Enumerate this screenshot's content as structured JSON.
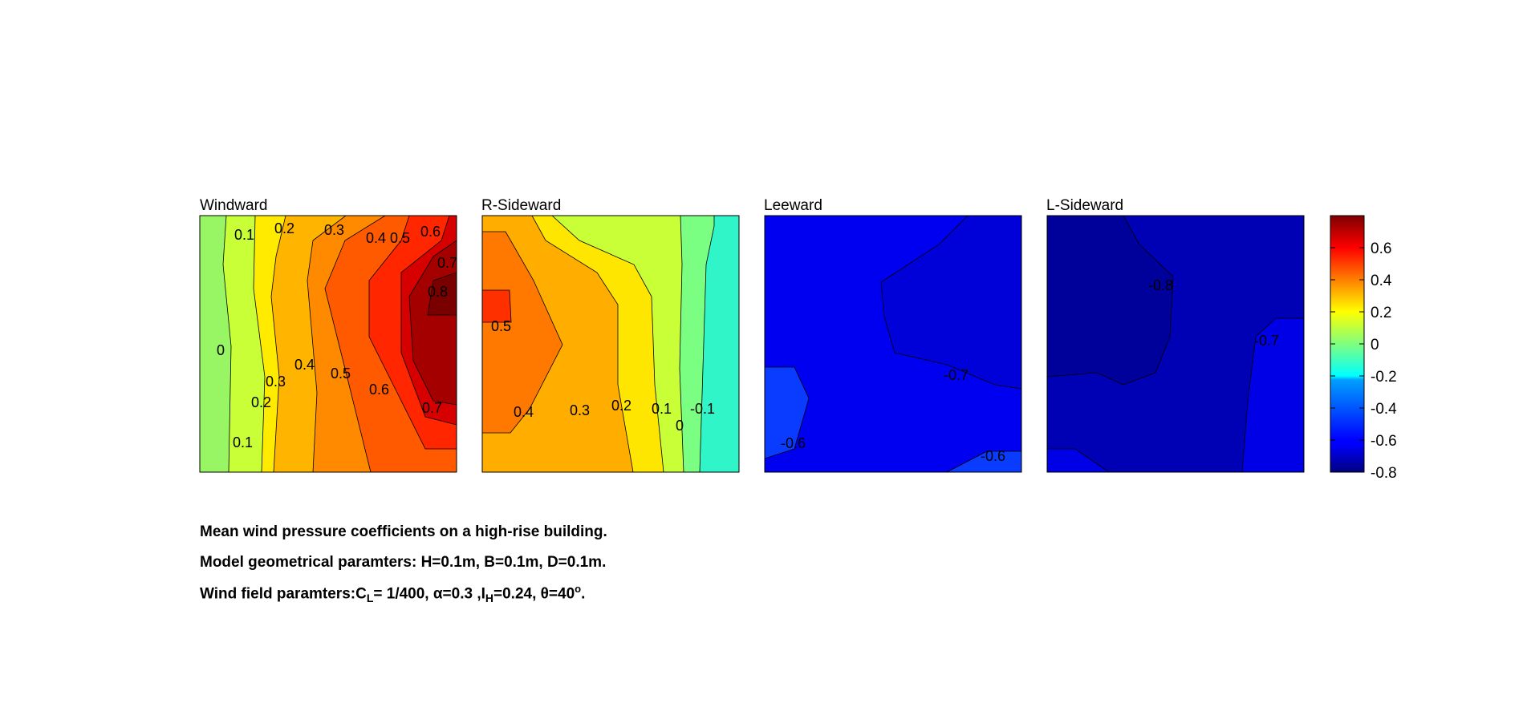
{
  "chart_data": {
    "type": "contour",
    "colormap": "jet",
    "clim": [
      -0.8,
      0.8
    ],
    "panels": [
      {
        "title": "Windward",
        "contour_labels": [
          "0.1",
          "0.2",
          "0.3",
          "0.4",
          "0.5",
          "0.6",
          "0.7",
          "0.8",
          "0",
          "0.2",
          "0.3",
          "0.4",
          "0.5",
          "0.6",
          "0.7",
          "0.1"
        ],
        "bands": [
          {
            "value": -0.1,
            "color": "#98f564"
          },
          {
            "value": 0.05,
            "color": "#c8ff37"
          },
          {
            "value": 0.15,
            "color": "#ffeb00"
          },
          {
            "value": 0.25,
            "color": "#ffb400"
          },
          {
            "value": 0.35,
            "color": "#ff8a00"
          },
          {
            "value": 0.45,
            "color": "#ff5a00"
          },
          {
            "value": 0.55,
            "color": "#ff2600"
          },
          {
            "value": 0.65,
            "color": "#d60000"
          },
          {
            "value": 0.75,
            "color": "#a50000"
          },
          {
            "value": 0.85,
            "color": "#7a0000"
          }
        ]
      },
      {
        "title": "R-Sideward",
        "contour_labels": [
          "0.5",
          "0.4",
          "0.3",
          "0.2",
          "0.1",
          "0",
          "-0.1"
        ],
        "bands": [
          {
            "value": -0.15,
            "color": "#2ff5c8"
          },
          {
            "value": -0.05,
            "color": "#7aff82"
          },
          {
            "value": 0.05,
            "color": "#c8ff37"
          },
          {
            "value": 0.15,
            "color": "#ffe600"
          },
          {
            "value": 0.3,
            "color": "#ffae00"
          },
          {
            "value": 0.4,
            "color": "#ff7800"
          },
          {
            "value": 0.55,
            "color": "#ff3000"
          }
        ]
      },
      {
        "title": "Leeward",
        "contour_labels": [
          "-0.7",
          "-0.6",
          "-0.6"
        ],
        "bands": [
          {
            "value": -0.75,
            "color": "#0000d8"
          },
          {
            "value": -0.65,
            "color": "#0000f0"
          },
          {
            "value": -0.55,
            "color": "#0a3cff"
          }
        ]
      },
      {
        "title": "L-Sideward",
        "contour_labels": [
          "-0.8",
          "-0.7"
        ],
        "bands": [
          {
            "value": -0.85,
            "color": "#00009a"
          },
          {
            "value": -0.75,
            "color": "#0000b4"
          },
          {
            "value": -0.65,
            "color": "#0000e6"
          }
        ]
      }
    ],
    "colorbar": {
      "ticks": [
        "0.6",
        "0.4",
        "0.2",
        "0",
        "-0.2",
        "-0.4",
        "-0.6",
        "-0.8"
      ],
      "tick_values": [
        0.6,
        0.4,
        0.2,
        0,
        -0.2,
        -0.4,
        -0.6,
        -0.8
      ]
    }
  },
  "caption": {
    "line1": "Mean wind pressure coefficients on a high-rise building.",
    "line2": "Model geometrical paramters: H=0.1m, B=0.1m, D=0.1m.",
    "line3_a": "Wind field paramters:C",
    "line3_sub1": "L",
    "line3_b": "= 1/400, α=0.3 ,I",
    "line3_sub2": "H",
    "line3_c": "=0.24, θ=40",
    "line3_sup": "o",
    "line3_d": "."
  }
}
